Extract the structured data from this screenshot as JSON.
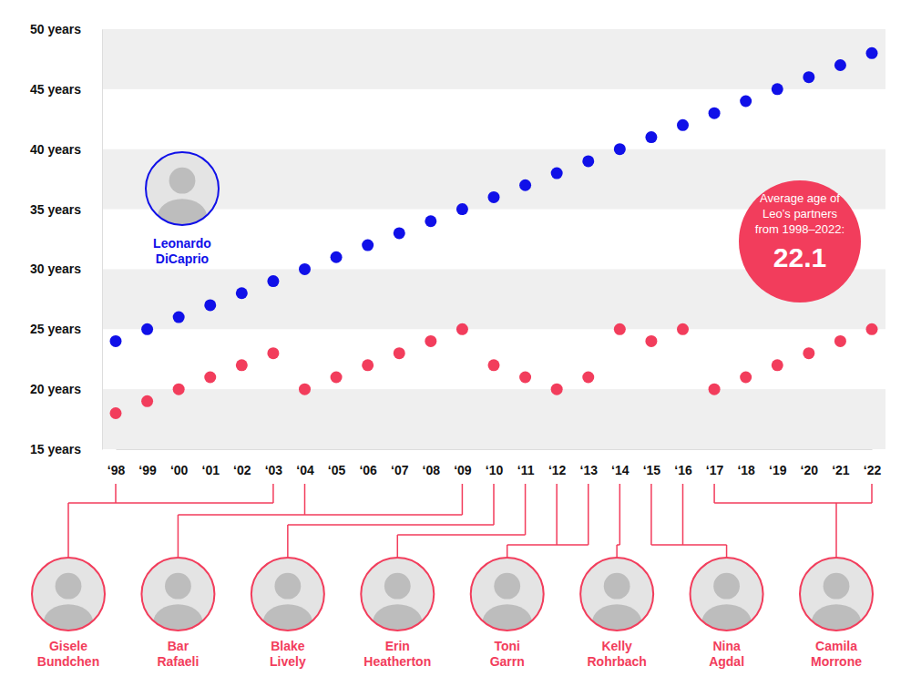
{
  "chart_data": {
    "type": "scatter",
    "categories": [
      "‘98",
      "‘99",
      "‘00",
      "‘01",
      "‘02",
      "‘03",
      "‘04",
      "‘05",
      "‘06",
      "‘07",
      "‘08",
      "‘09",
      "‘10",
      "‘11",
      "‘12",
      "‘13",
      "‘14",
      "‘15",
      "‘16",
      "‘17",
      "‘18",
      "‘19",
      "‘20",
      "‘21",
      "‘22"
    ],
    "series": [
      {
        "name": "Leonardo DiCaprio",
        "color": "#1010e8",
        "values": [
          24,
          25,
          26,
          27,
          28,
          29,
          30,
          31,
          32,
          33,
          34,
          35,
          36,
          37,
          38,
          39,
          40,
          41,
          42,
          43,
          44,
          45,
          46,
          47,
          48
        ]
      },
      {
        "color": "#f23d5c",
        "values": [
          18,
          19,
          20,
          21,
          22,
          23,
          20,
          21,
          22,
          23,
          24,
          25,
          22,
          21,
          20,
          21,
          25,
          24,
          25,
          20,
          21,
          22,
          23,
          24,
          25
        ]
      }
    ],
    "ylim": [
      15,
      50
    ],
    "yticks": [
      {
        "value": 15,
        "label": "15 years"
      },
      {
        "value": 20,
        "label": "20 years"
      },
      {
        "value": 25,
        "label": "25 years"
      },
      {
        "value": 30,
        "label": "30 years"
      },
      {
        "value": 35,
        "label": "35 years"
      },
      {
        "value": 40,
        "label": "40 years"
      },
      {
        "value": 45,
        "label": "45 years"
      },
      {
        "value": 50,
        "label": "50 years"
      }
    ],
    "grid": true,
    "average": {
      "label": "Average age of Leo’s partners from 1998–2022:",
      "value": 22.1
    },
    "partners": [
      {
        "name": "Gisele Bundchen",
        "years": [
          "‘98",
          "‘03"
        ]
      },
      {
        "name": "Bar Rafaeli",
        "years": [
          "‘04",
          "‘09"
        ]
      },
      {
        "name": "Blake Lively",
        "years": [
          "‘10"
        ]
      },
      {
        "name": "Erin Heatherton",
        "years": [
          "‘11"
        ]
      },
      {
        "name": "Toni Garrn",
        "years": [
          "‘12",
          "‘13"
        ]
      },
      {
        "name": "Kelly Rohrbach",
        "years": [
          "‘14"
        ]
      },
      {
        "name": "Nina Agdal",
        "years": [
          "‘15",
          "‘16"
        ]
      },
      {
        "name": "Camila Morrone",
        "years": [
          "‘17",
          "‘22"
        ]
      }
    ]
  }
}
